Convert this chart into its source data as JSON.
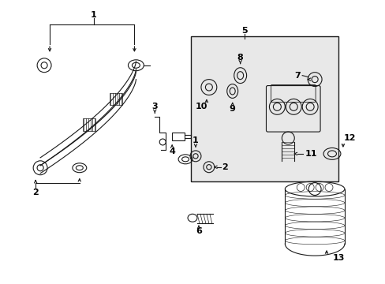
{
  "bg_color": "#ffffff",
  "diagram_bg": "#e8e8e8",
  "line_color": "#1a1a1a",
  "text_color": "#000000",
  "fig_width": 4.89,
  "fig_height": 3.6,
  "dpi": 100
}
